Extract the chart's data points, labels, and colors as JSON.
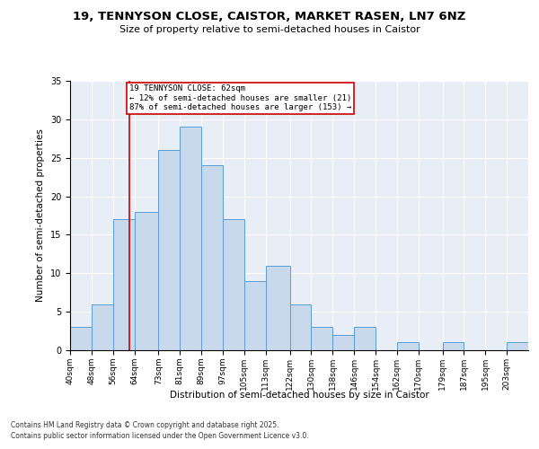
{
  "title": "19, TENNYSON CLOSE, CAISTOR, MARKET RASEN, LN7 6NZ",
  "subtitle": "Size of property relative to semi-detached houses in Caistor",
  "xlabel": "Distribution of semi-detached houses by size in Caistor",
  "ylabel": "Number of semi-detached properties",
  "bar_labels": [
    "40sqm",
    "48sqm",
    "56sqm",
    "64sqm",
    "73sqm",
    "81sqm",
    "89sqm",
    "97sqm",
    "105sqm",
    "113sqm",
    "122sqm",
    "130sqm",
    "138sqm",
    "146sqm",
    "154sqm",
    "162sqm",
    "170sqm",
    "179sqm",
    "187sqm",
    "195sqm",
    "203sqm"
  ],
  "bar_values": [
    3,
    6,
    17,
    18,
    26,
    29,
    24,
    17,
    9,
    11,
    6,
    3,
    2,
    3,
    0,
    1,
    0,
    1,
    0,
    0,
    1
  ],
  "bar_color": "#c9d9ec",
  "bar_edge_color": "#5b9bd5",
  "property_line_x": 62,
  "bin_edges": [
    40,
    48,
    56,
    64,
    73,
    81,
    89,
    97,
    105,
    113,
    122,
    130,
    138,
    146,
    154,
    162,
    170,
    179,
    187,
    195,
    203,
    211
  ],
  "annotation_title": "19 TENNYSON CLOSE: 62sqm",
  "annotation_line1": "← 12% of semi-detached houses are smaller (21)",
  "annotation_line2": "87% of semi-detached houses are larger (153) →",
  "vline_color": "#cc0000",
  "ylim": [
    0,
    35
  ],
  "yticks": [
    0,
    5,
    10,
    15,
    20,
    25,
    30,
    35
  ],
  "bg_color": "#e8eef6",
  "footnote1": "Contains HM Land Registry data © Crown copyright and database right 2025.",
  "footnote2": "Contains public sector information licensed under the Open Government Licence v3.0."
}
